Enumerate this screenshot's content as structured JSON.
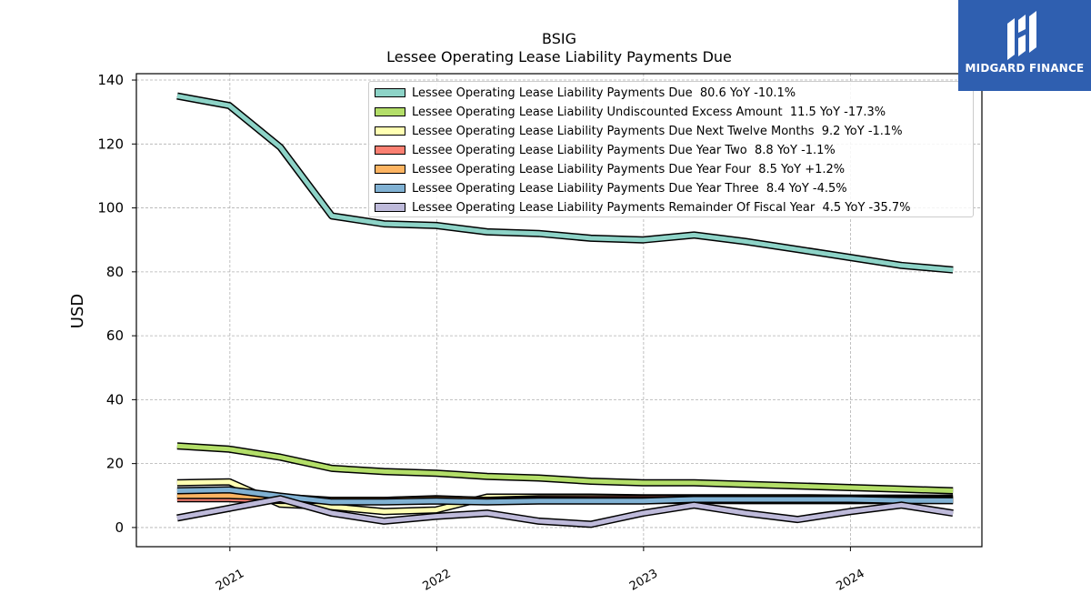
{
  "chart_data": {
    "type": "line",
    "title": "BSIG",
    "subtitle": "Lessee Operating Lease Liability Payments Due",
    "ylabel": "USD",
    "xlabel": "",
    "ylim": [
      -6,
      142
    ],
    "yticks": [
      0,
      20,
      40,
      60,
      80,
      100,
      120,
      140
    ],
    "xticks": [
      "2021",
      "2022",
      "2023",
      "2024"
    ],
    "grid": true,
    "legend_position": "top-right",
    "x": [
      "2020-09-30",
      "2020-12-31",
      "2021-03-31",
      "2021-06-30",
      "2021-09-30",
      "2021-12-31",
      "2022-03-31",
      "2022-06-30",
      "2022-09-30",
      "2022-12-31",
      "2023-03-31",
      "2023-06-30",
      "2023-09-30",
      "2023-12-31",
      "2024-03-31",
      "2024-06-30"
    ],
    "series": [
      {
        "name": "Lessee Operating Lease Liability Payments Due",
        "legend_label": "Lessee Operating Lease Liability Payments Due  80.6 YoY -10.1%",
        "color": "#8dd3c7",
        "values": [
          135,
          132,
          119,
          97.5,
          95,
          94.5,
          92.5,
          92,
          90.5,
          90,
          91.5,
          89.5,
          87,
          84.5,
          82,
          80.6
        ]
      },
      {
        "name": "Lessee Operating Lease Liability Undiscounted Excess Amount",
        "legend_label": "Lessee Operating Lease Liability Undiscounted Excess Amount  11.5 YoY -17.3%",
        "color": "#b3de69",
        "values": [
          25.5,
          24.5,
          22,
          18.5,
          17.5,
          17,
          16,
          15.5,
          14.5,
          14,
          14,
          13.5,
          13,
          12.5,
          12,
          11.5
        ]
      },
      {
        "name": "Lessee Operating Lease Liability Payments Due Next Twelve Months",
        "legend_label": "Lessee Operating Lease Liability Payments Due Next Twelve Months  9.2 YoY -1.1%",
        "color": "#ffffb3",
        "values": [
          14,
          14.3,
          7.3,
          6.5,
          5,
          5.5,
          9.5,
          9.5,
          9.5,
          9.3,
          9.3,
          9.3,
          9.3,
          9.2,
          9.2,
          9.2
        ]
      },
      {
        "name": "Lessee Operating Lease Liability Payments Due Year Two",
        "legend_label": "Lessee Operating Lease Liability Payments Due Year Two  8.8 YoY -1.1%",
        "color": "#fb8072",
        "values": [
          9,
          9,
          8.5,
          8.5,
          8.5,
          9,
          8.5,
          9,
          9,
          9,
          9,
          8.9,
          8.9,
          8.9,
          8.8,
          8.8
        ]
      },
      {
        "name": "Lessee Operating Lease Liability Payments Due Year Four",
        "legend_label": "Lessee Operating Lease Liability Payments Due Year Four  8.5 YoY +1.2%",
        "color": "#fdb462",
        "values": [
          10,
          10,
          9.5,
          8.5,
          8.5,
          8.8,
          8.5,
          8.6,
          8.5,
          8.5,
          8.5,
          8.4,
          8.4,
          8.4,
          8.5,
          8.5
        ]
      },
      {
        "name": "Lessee Operating Lease Liability Payments Due Year Three",
        "legend_label": "Lessee Operating Lease Liability Payments Due Year Three  8.4 YoY -4.5%",
        "color": "#80b1d3",
        "values": [
          11.5,
          11.8,
          9.8,
          8,
          8,
          8.3,
          8,
          8.3,
          8.3,
          8.3,
          8.8,
          8.8,
          8.8,
          8.8,
          8.5,
          8.4
        ]
      },
      {
        "name": "Lessee Operating Lease Liability Payments Remainder Of Fiscal Year",
        "legend_label": "Lessee Operating Lease Liability Payments Remainder Of Fiscal Year  4.5 YoY -35.7%",
        "color": "#bebada",
        "values": [
          3,
          6,
          9,
          4.5,
          2,
          3.5,
          4.5,
          2,
          1,
          4.5,
          7,
          4.5,
          2.5,
          5,
          7,
          4.5
        ]
      }
    ]
  },
  "logo": {
    "text": "MIDGARD FINANCE",
    "color": "#2f5fb0"
  }
}
